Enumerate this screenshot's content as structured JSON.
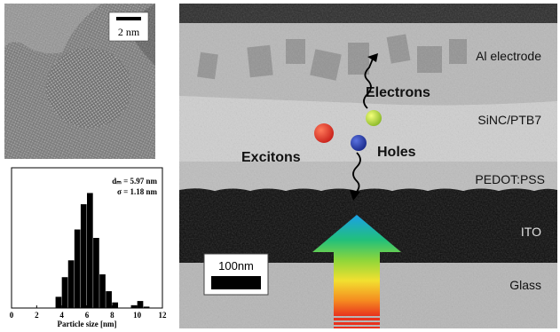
{
  "tem": {
    "scale_label": "2 nm"
  },
  "histogram": {
    "stat_mean": "dₘ = 5.97 nm",
    "stat_sigma": "σ  = 1.18 nm",
    "chart_data": {
      "type": "bar",
      "xlabel": "Particle size [nm]",
      "ylabel": "",
      "xlim": [
        0,
        12
      ],
      "x_ticks": [
        "0",
        "2",
        "4",
        "6",
        "8",
        "10",
        "12"
      ],
      "bin_width": 0.5,
      "x": [
        3.75,
        4.25,
        4.75,
        5.25,
        5.75,
        6.25,
        6.75,
        7.25,
        7.75,
        8.25,
        9.75,
        10.25,
        10.75
      ],
      "values": [
        8,
        22,
        34,
        56,
        74,
        82,
        50,
        24,
        12,
        4,
        2,
        5,
        1
      ],
      "ylim": [
        0,
        100
      ]
    }
  },
  "cross_section": {
    "layers": [
      {
        "name": "Al electrode"
      },
      {
        "name": "SiNC/PTB7"
      },
      {
        "name": "PEDOT:PSS"
      },
      {
        "name": "ITO"
      },
      {
        "name": "Glass"
      }
    ],
    "label_electrons": "Electrons",
    "label_holes": "Holes",
    "label_excitons": "Excitons",
    "scale_label": "100nm",
    "colors": {
      "electron": "#c9e04a",
      "hole": "#2a3fae",
      "exciton": "#e83a2a",
      "ito": "#0a0a0a"
    }
  }
}
